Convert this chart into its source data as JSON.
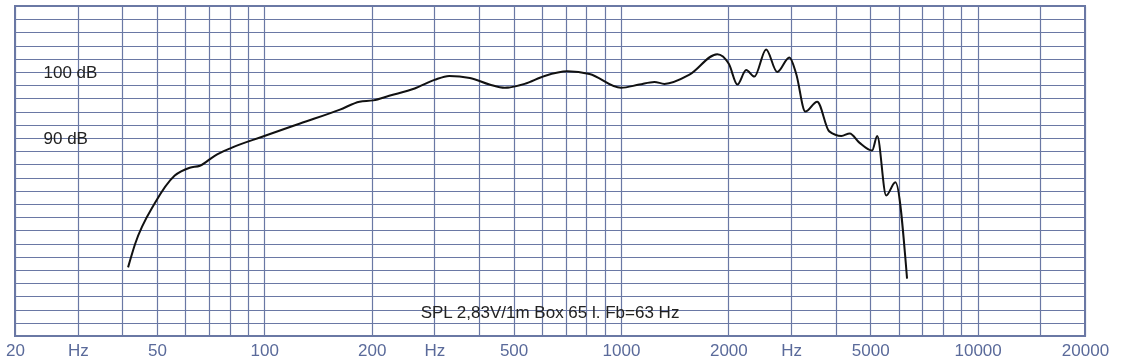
{
  "chart_data": {
    "type": "line",
    "annotations": [
      "SPL   2,83V/1m   Box 65 l.   Fb=63 Hz"
    ],
    "x": [
      41.5,
      43.4,
      49.3,
      56.1,
      61.8,
      66,
      72.6,
      80,
      100,
      126,
      163,
      185,
      202,
      224,
      264,
      300,
      330,
      377,
      428,
      472,
      537,
      611,
      708,
      816,
      1000,
      1126,
      1241,
      1324,
      1556,
      1862,
      2008,
      2120,
      2244,
      2367,
      2553,
      2741,
      2966,
      3100,
      3288,
      3550,
      3837,
      4150,
      4380,
      4660,
      5060,
      5230,
      5540,
      5880,
      6340
    ],
    "series": [
      {
        "color": "#111111",
        "values": [
          70.4,
          73.9,
          80.1,
          84.3,
          85.5,
          85.8,
          87.3,
          88.4,
          90.3,
          92.2,
          94.3,
          95.5,
          95.7,
          96.4,
          97.5,
          98.8,
          99.4,
          99.1,
          98.1,
          97.6,
          98.2,
          99.4,
          100.1,
          99.7,
          97.6,
          98.1,
          98.5,
          98.2,
          99.6,
          102.7,
          101.2,
          98.1,
          100.3,
          99.3,
          103.4,
          100,
          102.2,
          99.7,
          94,
          95.5,
          91,
          90.3,
          90.7,
          89.3,
          88.1,
          90.3,
          81.3,
          83.3,
          68.7
        ]
      }
    ],
    "log": "x",
    "xlim": [
      20,
      20000
    ],
    "xticks": [
      20,
      {
        "value": 30,
        "label": "Hz"
      },
      {
        "value": 40,
        "label": null
      },
      50,
      {
        "value": 60,
        "label": null
      },
      {
        "value": 70,
        "label": null
      },
      {
        "value": 80,
        "label": null
      },
      {
        "value": 90,
        "label": null
      },
      100,
      200,
      {
        "value": 300,
        "label": "Hz"
      },
      {
        "value": 400,
        "label": null
      },
      500,
      {
        "value": 600,
        "label": null
      },
      {
        "value": 700,
        "label": null
      },
      {
        "value": 800,
        "label": null
      },
      {
        "value": 900,
        "label": null
      },
      1000,
      2000,
      {
        "value": 3000,
        "label": "Hz"
      },
      {
        "value": 4000,
        "label": null
      },
      5000,
      {
        "value": 6000,
        "label": null
      },
      {
        "value": 7000,
        "label": null
      },
      {
        "value": 8000,
        "label": null
      },
      {
        "value": 9000,
        "label": null
      },
      10000,
      {
        "value": 15000,
        "label": null
      },
      20000
    ],
    "ylim": [
      60,
      110
    ],
    "yticks": [
      {
        "value": 60,
        "label": null
      },
      {
        "value": 62,
        "label": null
      },
      {
        "value": 64,
        "label": null
      },
      {
        "value": 66,
        "label": null
      },
      {
        "value": 68,
        "label": null
      },
      {
        "value": 70,
        "label": null
      },
      {
        "value": 72,
        "label": null
      },
      {
        "value": 74,
        "label": null
      },
      {
        "value": 76,
        "label": null
      },
      {
        "value": 78,
        "label": null
      },
      {
        "value": 80,
        "label": null
      },
      {
        "value": 82,
        "label": null
      },
      {
        "value": 84,
        "label": null
      },
      {
        "value": 86,
        "label": null
      },
      {
        "value": 88,
        "label": null
      },
      {
        "value": 90,
        "label": "90 dB"
      },
      {
        "value": 92,
        "label": null
      },
      {
        "value": 94,
        "label": null
      },
      {
        "value": 96,
        "label": null
      },
      {
        "value": 98,
        "label": null
      },
      {
        "value": 100,
        "label": "100 dB"
      },
      {
        "value": 102,
        "label": null
      },
      {
        "value": 104,
        "label": null
      },
      {
        "value": 106,
        "label": null
      },
      {
        "value": 108,
        "label": null
      },
      {
        "value": 110,
        "label": null
      }
    ],
    "grid": true,
    "line_style": "solid",
    "marker": "none"
  }
}
